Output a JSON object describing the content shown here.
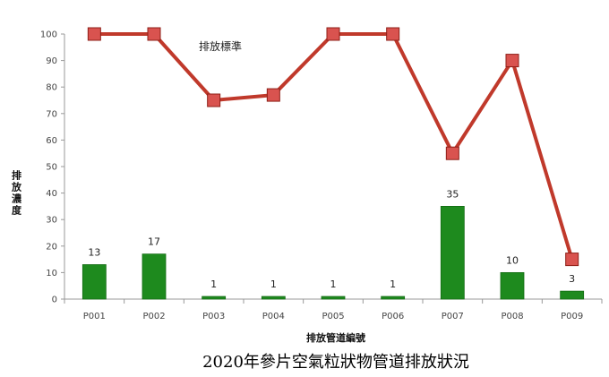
{
  "chart_data": {
    "type": "bar+line",
    "title": "2020年參片空氣粒狀物管道排放狀況",
    "xlabel": "排放管道編號",
    "ylabel": "排放濃度",
    "ylim": [
      0,
      100
    ],
    "yticks": [
      0,
      10,
      20,
      30,
      40,
      50,
      60,
      70,
      80,
      90,
      100
    ],
    "categories": [
      "P001",
      "P002",
      "P003",
      "P004",
      "P005",
      "P006",
      "P007",
      "P008",
      "P009"
    ],
    "series": [
      {
        "name": "",
        "type": "bar",
        "color": "#1e8a1e",
        "values": [
          13,
          17,
          1,
          1,
          1,
          1,
          35,
          10,
          3
        ],
        "data_labels": [
          "13",
          "17",
          "1",
          "1",
          "1",
          "1",
          "35",
          "10",
          "3"
        ]
      },
      {
        "name": "排放標準",
        "type": "line",
        "color": "#c0392b",
        "marker_color": "#d9534f",
        "values": [
          100,
          100,
          75,
          77,
          100,
          100,
          55,
          90,
          15
        ]
      }
    ],
    "grid": false
  }
}
